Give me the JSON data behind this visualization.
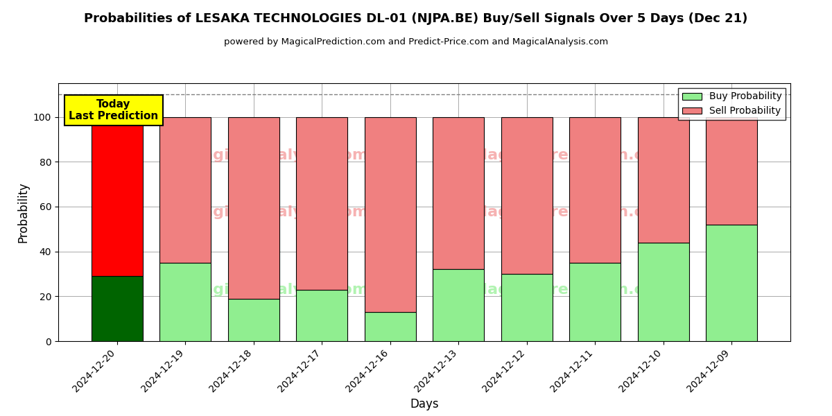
{
  "title": "Probabilities of LESAKA TECHNOLOGIES DL-01 (NJPA.BE) Buy/Sell Signals Over 5 Days (Dec 21)",
  "subtitle": "powered by MagicalPrediction.com and Predict-Price.com and MagicalAnalysis.com",
  "xlabel": "Days",
  "ylabel": "Probability",
  "categories": [
    "2024-12-20",
    "2024-12-19",
    "2024-12-18",
    "2024-12-17",
    "2024-12-16",
    "2024-12-13",
    "2024-12-12",
    "2024-12-11",
    "2024-12-10",
    "2024-12-09"
  ],
  "buy_values": [
    29,
    35,
    19,
    23,
    13,
    32,
    30,
    35,
    44,
    52
  ],
  "sell_values": [
    71,
    65,
    81,
    77,
    87,
    68,
    70,
    65,
    56,
    48
  ],
  "today_index": 0,
  "buy_color_today": "#006400",
  "sell_color_today": "#FF0000",
  "buy_color_normal": "#90EE90",
  "sell_color_normal": "#F08080",
  "bar_edge_color": "#000000",
  "today_label": "Today\nLast Prediction",
  "today_box_color": "#FFFF00",
  "legend_buy": "Buy Probability",
  "legend_sell": "Sell Probability",
  "ylim": [
    0,
    115
  ],
  "dashed_line_y": 110,
  "background_color": "#ffffff",
  "grid_color": "#aaaaaa"
}
